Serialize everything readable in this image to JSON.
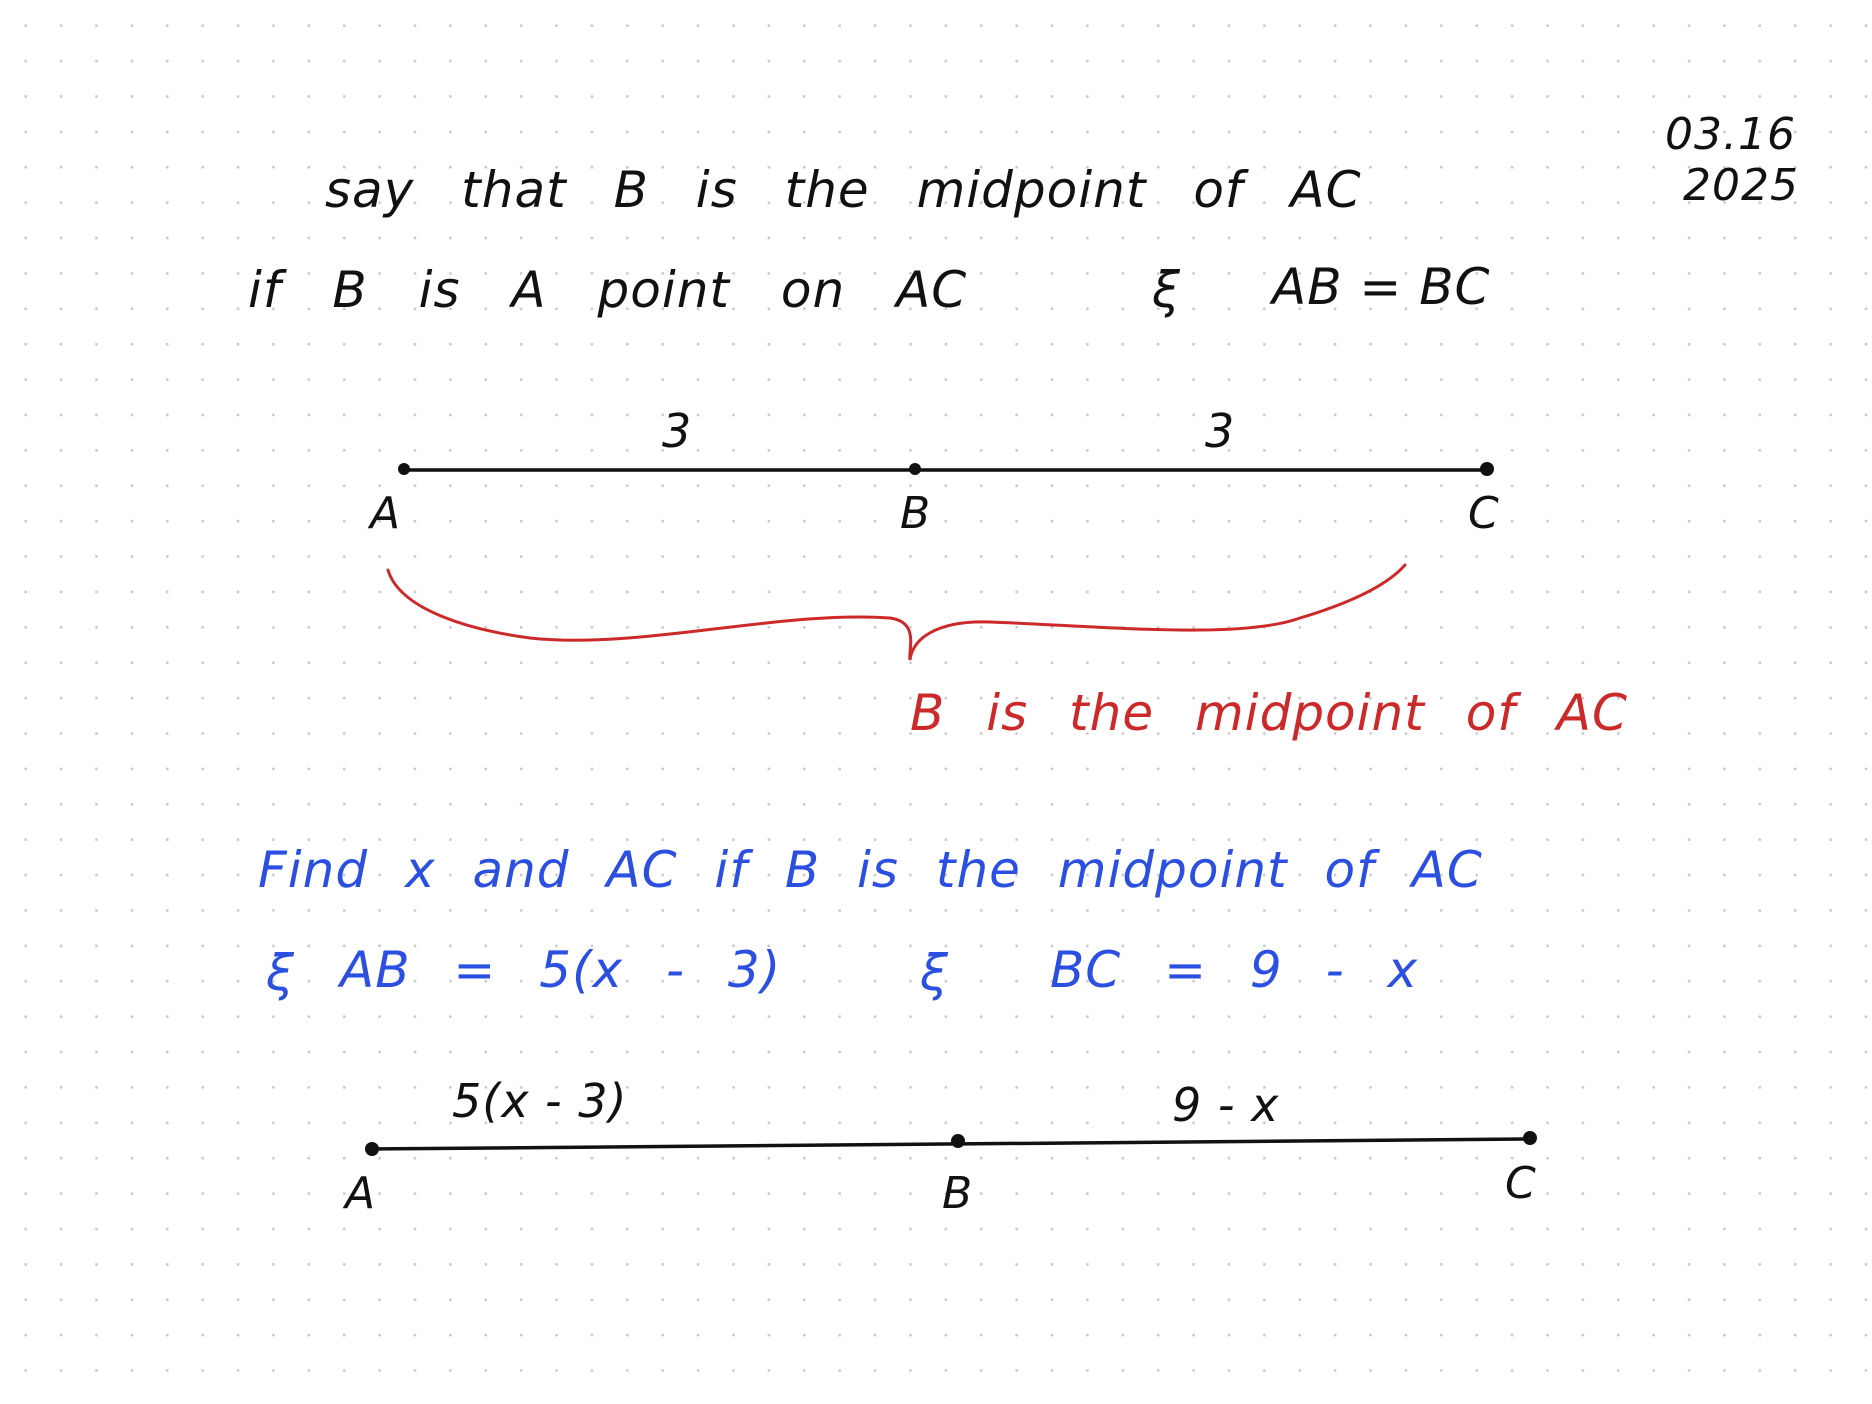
{
  "date": {
    "line1": "03.16",
    "line2": "2025"
  },
  "definition": {
    "line1": "say that B is the midpoint of AC",
    "line2_before": "if B is A point on AC",
    "and_symbol": "ξ",
    "line2_after": "AB = BC"
  },
  "diagram1": {
    "points": [
      "A",
      "B",
      "C"
    ],
    "segment_labels": [
      "3",
      "3"
    ],
    "note": "B is the midpoint of AC",
    "brace_color": "#cc2a2a"
  },
  "problem": {
    "line1": "Find x and AC if B is the midpoint of AC",
    "and_symbol": "ξ",
    "eq1": "AB = 5(x - 3)",
    "eq2": "BC = 9 - x",
    "color": "#2b4fe0"
  },
  "diagram2": {
    "points": [
      "A",
      "B",
      "C"
    ],
    "segment_labels": [
      "5(x - 3)",
      "9 - x"
    ]
  }
}
